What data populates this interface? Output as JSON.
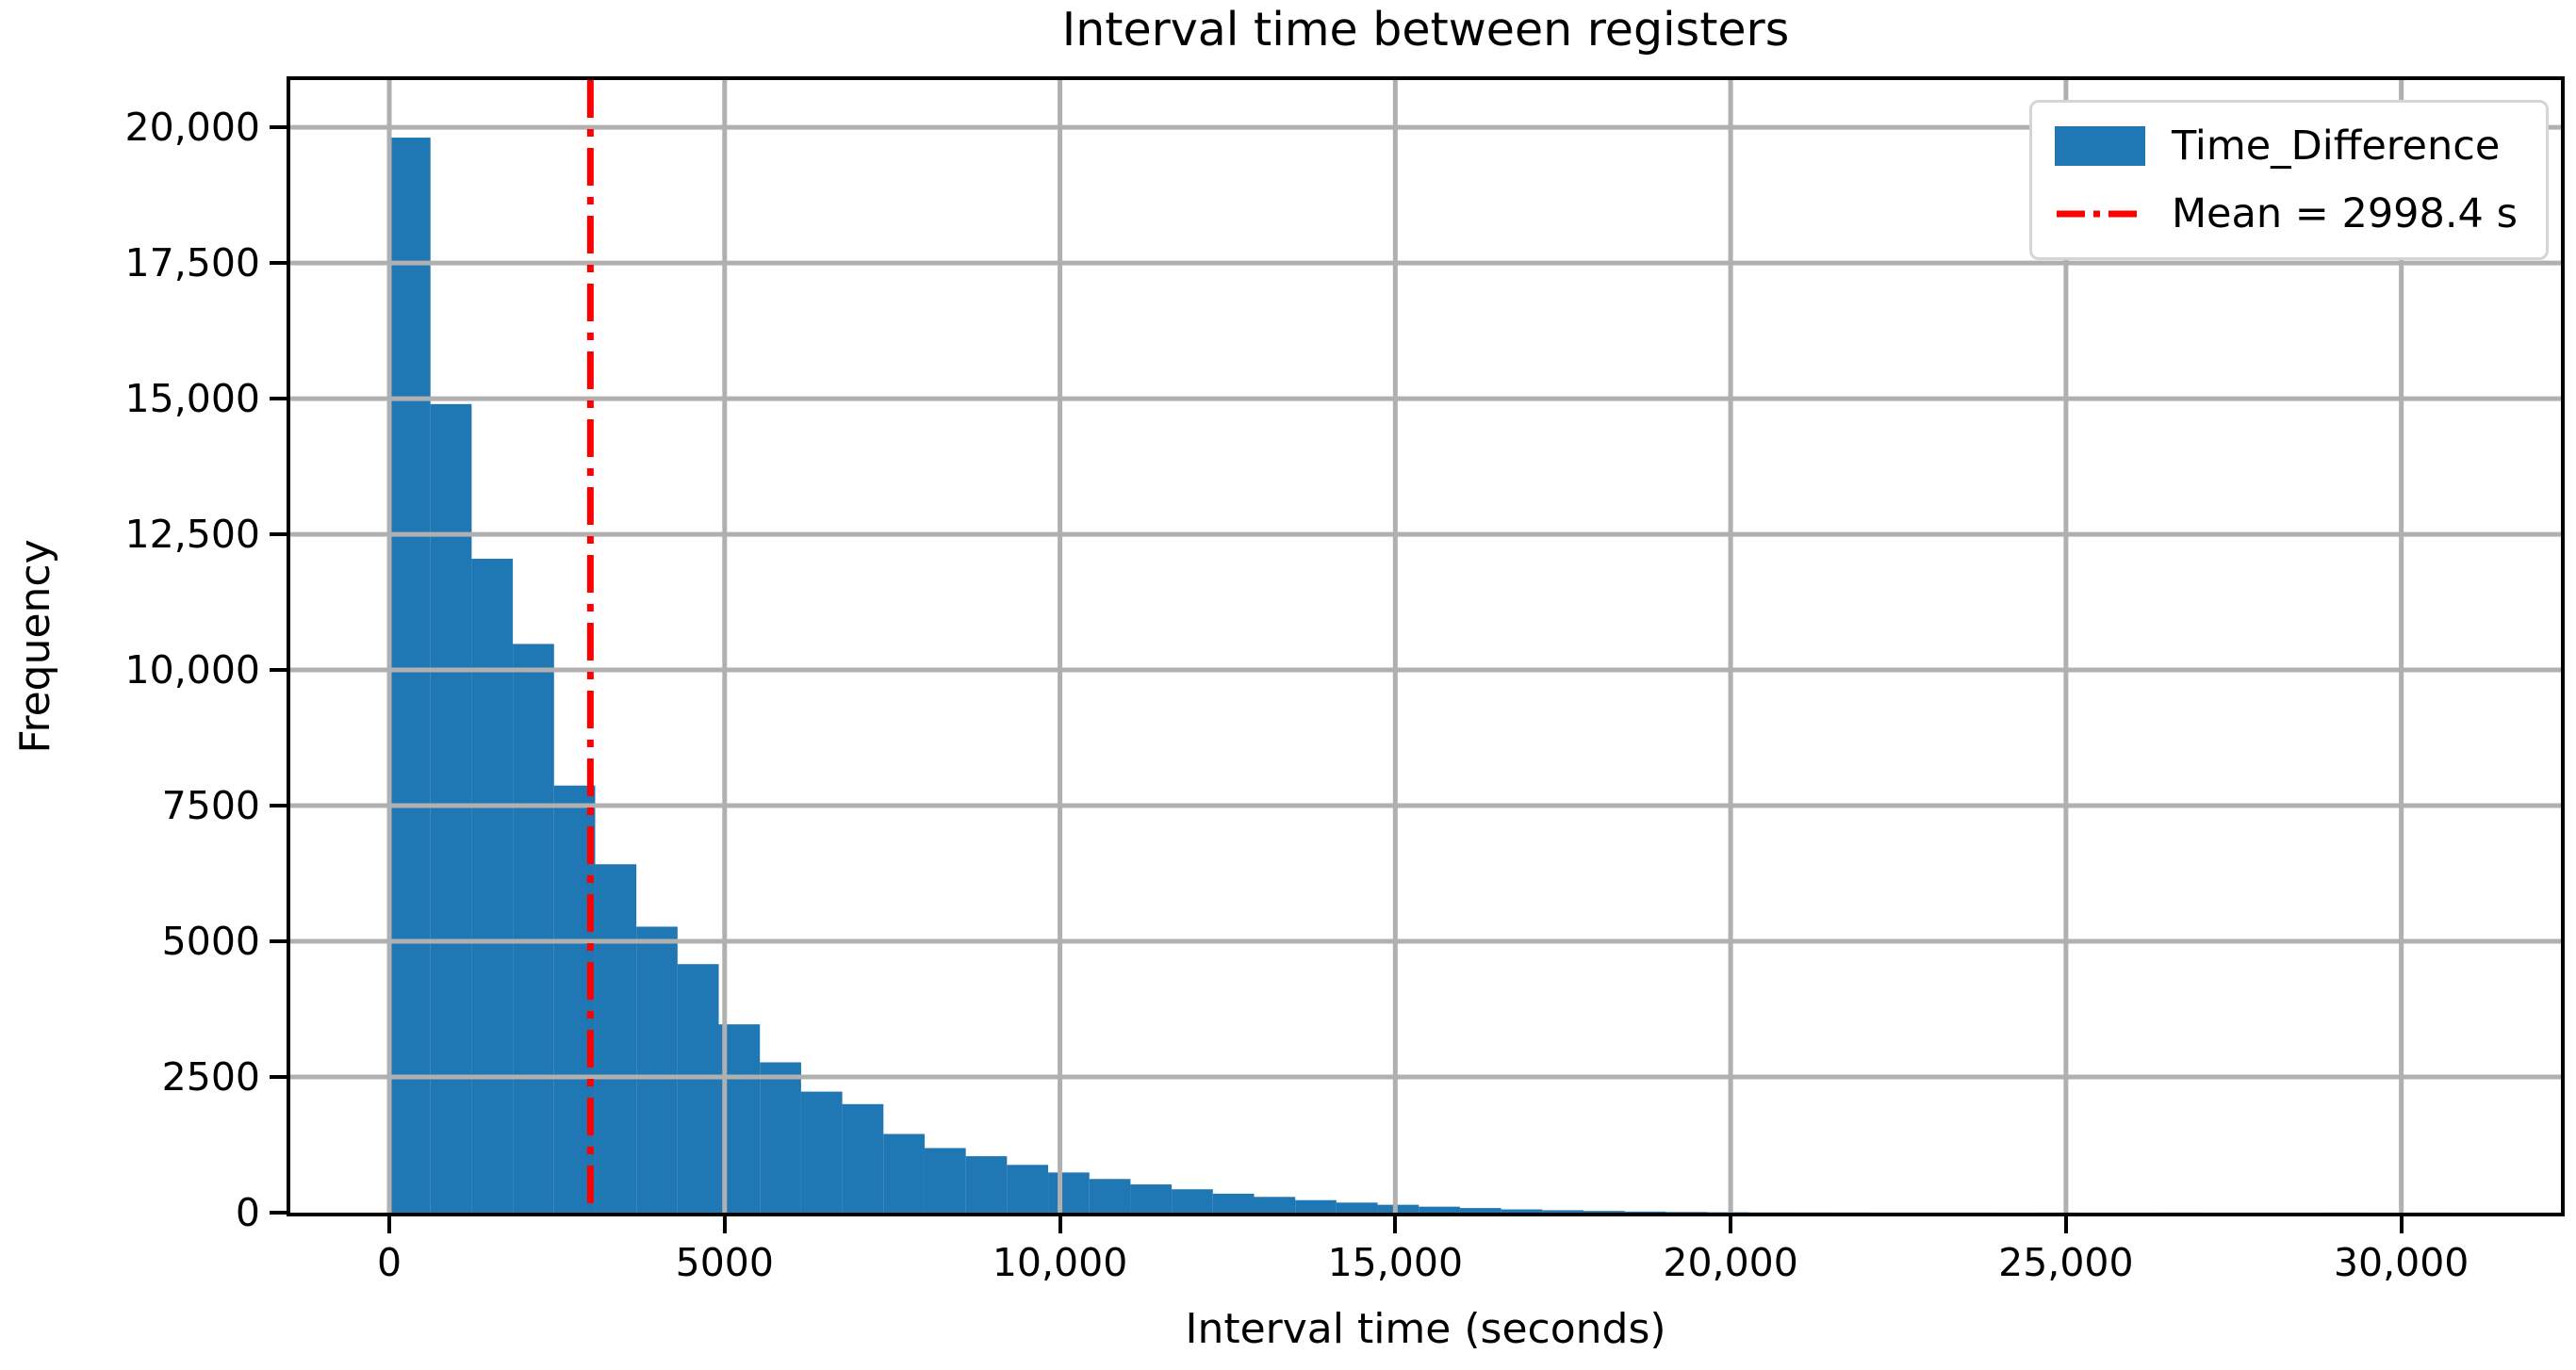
{
  "title": "Interval time between registers",
  "xlabel": "Interval time (seconds)",
  "ylabel": "Frequency",
  "legend": {
    "series_label": "Time_Difference",
    "mean_label": "Mean = 2998.4 s"
  },
  "colors": {
    "bar": "#1f77b4",
    "mean_line": "#ff0000",
    "grid": "#b0b0b0",
    "spine": "#000000",
    "background": "#ffffff",
    "legend_border": "#d5d5d5"
  },
  "chart_data": {
    "type": "bar",
    "subtype": "histogram",
    "title": "Interval time between registers",
    "xlabel": "Interval time (seconds)",
    "ylabel": "Frequency",
    "series_name": "Time_Difference",
    "mean_seconds": 2998.4,
    "bin_start": 0,
    "bin_width": 614,
    "values": [
      19810,
      14900,
      12050,
      10480,
      7870,
      6420,
      5270,
      4580,
      3470,
      2770,
      2230,
      2000,
      1450,
      1190,
      1040,
      880,
      740,
      620,
      520,
      430,
      350,
      290,
      230,
      185,
      145,
      110,
      85,
      60,
      45,
      32,
      20,
      12,
      7,
      4,
      3,
      2,
      1,
      1,
      1,
      0,
      1,
      0,
      0,
      1,
      0,
      0,
      0,
      1,
      0,
      1
    ],
    "xlim": [
      -1476,
      32380
    ],
    "ylim": [
      0,
      20870
    ],
    "xticks": [
      0,
      5000,
      10000,
      15000,
      20000,
      25000,
      30000
    ],
    "xtick_labels": [
      "0",
      "5000",
      "10,000",
      "15,000",
      "20,000",
      "25,000",
      "30,000"
    ],
    "yticks": [
      0,
      2500,
      5000,
      7500,
      10000,
      12500,
      15000,
      17500,
      20000
    ],
    "ytick_labels": [
      "0",
      "2500",
      "5000",
      "7500",
      "10,000",
      "12,500",
      "15,000",
      "17,500",
      "20,000"
    ],
    "grid": true,
    "grid_on_top": true,
    "legend_position": "upper right"
  }
}
